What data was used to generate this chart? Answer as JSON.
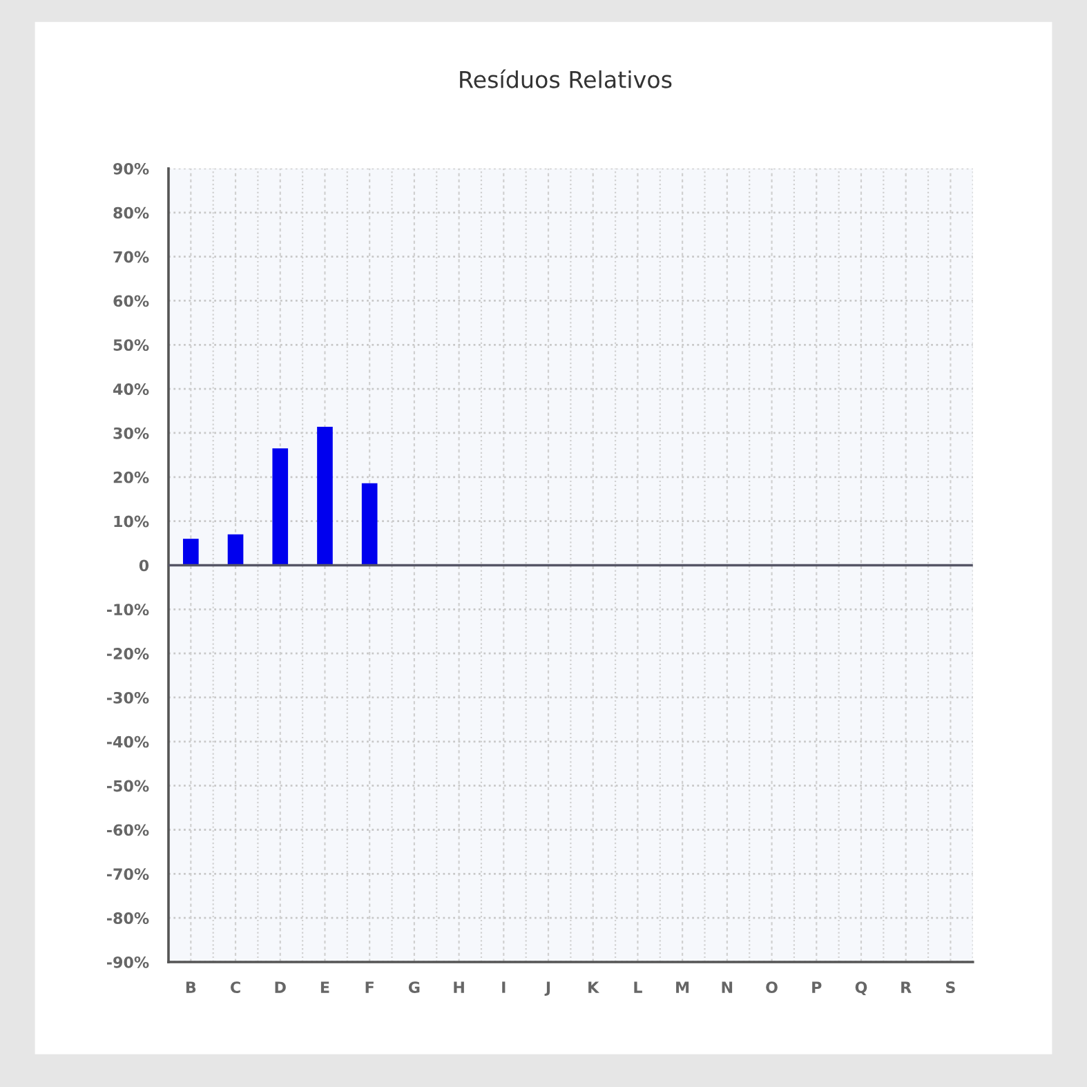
{
  "chart_data": {
    "type": "bar",
    "title": "Resíduos Relativos",
    "categories": [
      "B",
      "C",
      "D",
      "E",
      "F",
      "G",
      "H",
      "I",
      "J",
      "K",
      "L",
      "M",
      "N",
      "O",
      "P",
      "Q",
      "R",
      "S"
    ],
    "values": [
      6,
      7,
      26.5,
      31.4,
      18.6,
      null,
      null,
      null,
      null,
      null,
      null,
      null,
      null,
      null,
      null,
      null,
      null,
      null
    ],
    "color": "#0000ee",
    "ylim": [
      -90,
      90
    ],
    "yticks": [
      {
        "value": -90,
        "label": "-90%"
      },
      {
        "value": -80,
        "label": "-80%"
      },
      {
        "value": -70,
        "label": "-70%"
      },
      {
        "value": -60,
        "label": "-60%"
      },
      {
        "value": -50,
        "label": "-50%"
      },
      {
        "value": -40,
        "label": "-40%"
      },
      {
        "value": -30,
        "label": "-30%"
      },
      {
        "value": -20,
        "label": "-20%"
      },
      {
        "value": -10,
        "label": "-10%"
      },
      0,
      {
        "value": 10,
        "label": "10%"
      },
      {
        "value": 20,
        "label": "20%"
      },
      {
        "value": 30,
        "label": "30%"
      },
      {
        "value": 40,
        "label": "40%"
      },
      {
        "value": 50,
        "label": "50%"
      },
      {
        "value": 60,
        "label": "60%"
      },
      {
        "value": 70,
        "label": "70%"
      },
      {
        "value": 80,
        "label": "80%"
      },
      {
        "value": 90,
        "label": "90%"
      }
    ],
    "ref_lines": [
      {
        "axis": "y",
        "value": 0,
        "color": "#555566"
      }
    ],
    "grid": true
  }
}
